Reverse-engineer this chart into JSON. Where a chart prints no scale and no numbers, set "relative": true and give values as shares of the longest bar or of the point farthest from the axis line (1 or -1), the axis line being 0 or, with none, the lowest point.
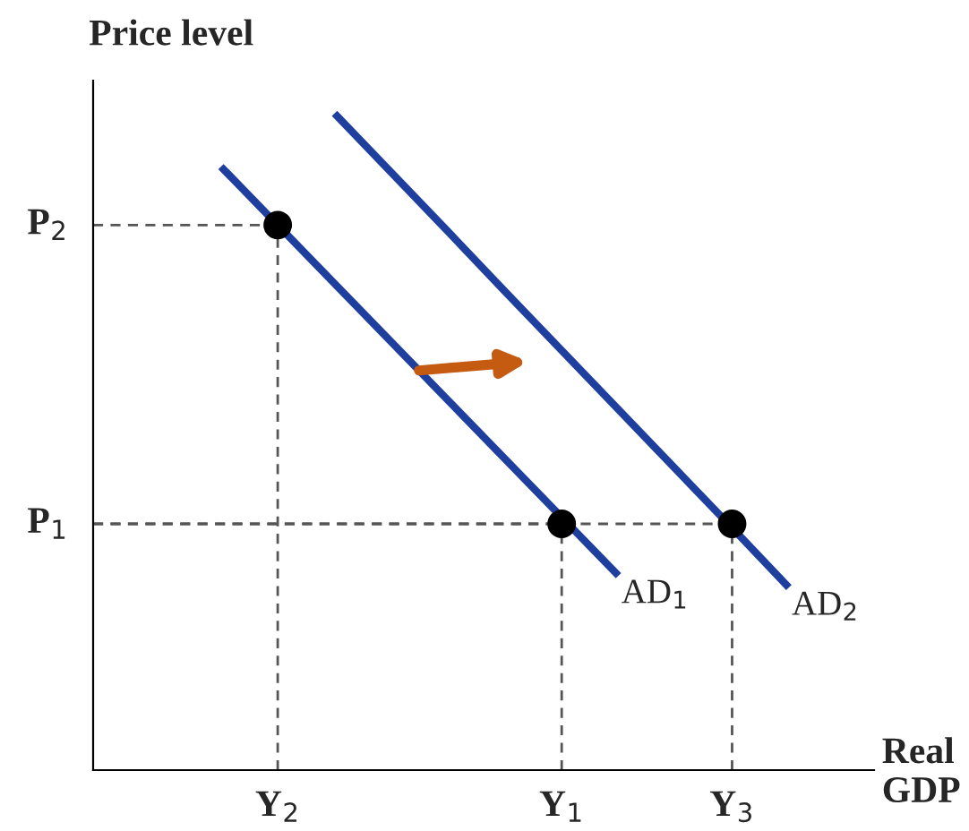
{
  "chart_data": {
    "type": "line",
    "relative": true,
    "ylabel": "Price level",
    "xlabel": "Real\nGDP",
    "categories": [
      null,
      null,
      null,
      "Y$_{2}$",
      null,
      null,
      null,
      null,
      "Y$_{1}$",
      null,
      null,
      "Y$_{3}$",
      null,
      null
    ],
    "annotations": [
      "P$_{1}$",
      "P$_{2}$"
    ],
    "series": [
      {
        "name": "AD$_{1}$",
        "color": "#1f3f9f",
        "values": [
          null,
          null,
          0.919,
          0.83,
          0.741,
          0.652,
          0.563,
          0.474,
          0.385,
          0.296,
          null,
          null,
          null,
          null
        ]
      },
      {
        "name": "AD$_{2}$",
        "color": "#1f3f9f",
        "values": [
          null,
          null,
          null,
          null,
          1.0,
          0.91,
          0.82,
          0.729,
          0.639,
          0.549,
          0.459,
          0.369,
          0.278,
          null
        ]
      },
      {
        "type": "scatter",
        "color": "#000000",
        "values": [
          null,
          null,
          null,
          0.83,
          null,
          null,
          null,
          null,
          0.375,
          null,
          null,
          0.375,
          null,
          null
        ]
      }
    ]
  }
}
